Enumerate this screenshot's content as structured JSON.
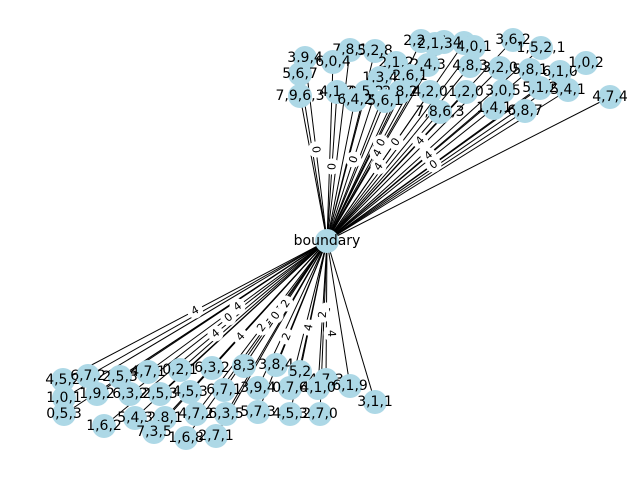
{
  "colors": {
    "node_fill": "#add8e6",
    "edge": "#000000",
    "background": "#ffffff"
  },
  "hub": {
    "label": "boundary"
  },
  "upper_cluster": {
    "node_labels": [
      "3,6,2",
      "2,2,3",
      "1,1,4",
      "4,3",
      "4,0,1",
      "1,5,2,1",
      "2,1,3",
      "7,8,1",
      "5,2,8",
      "3,9,4",
      "6,0,4",
      "2,1,2",
      "2,4,3",
      "4,8,3",
      "3,2,0",
      "5,8,1",
      "6,1,0",
      "1,0,2",
      "1,3,4",
      "2,6,1",
      "5,6,7",
      "4,1,3",
      "0,5,2",
      "2,8,2",
      "4,2,0",
      "1,2,0",
      "3,0,5",
      "5,1,2",
      "5,4,1",
      "4,7,4",
      "7,9,6,3",
      "6,4,2",
      "5,6,1",
      "7,8,6,3",
      "1,4,1",
      "6,8,7"
    ],
    "edge_labels": [
      "4",
      "0",
      "0",
      "0",
      "4",
      "4",
      "0",
      "0",
      "4",
      "0"
    ]
  },
  "lower_cluster": {
    "node_labels": [
      "4,5,2",
      "6,7,2",
      "2,5,3",
      "4,7,1",
      "0,2,1",
      "6,3,2",
      "8,3",
      "3,8,4",
      "5,2",
      "4,7,3",
      "1,0,1",
      "1,9,2",
      "6,3,2",
      "2,5,3",
      "4,5,3",
      "6,7,1",
      "3,9,4",
      "0,7,6",
      "4,1,0",
      "6,1,9",
      "0,5,3",
      "1,6,2",
      "5,4,3",
      "2,8,1",
      "4,7,2",
      "6,3,5",
      "5,7,3",
      "4,5,3",
      "2,7,0",
      "3,1,1",
      "7,3,5",
      "1,6,8",
      "2,7,1"
    ],
    "edge_labels": [
      "4",
      "4",
      "2",
      "2",
      "0",
      "0",
      "2",
      "4",
      "2",
      "4",
      "4",
      "2",
      "4"
    ]
  }
}
